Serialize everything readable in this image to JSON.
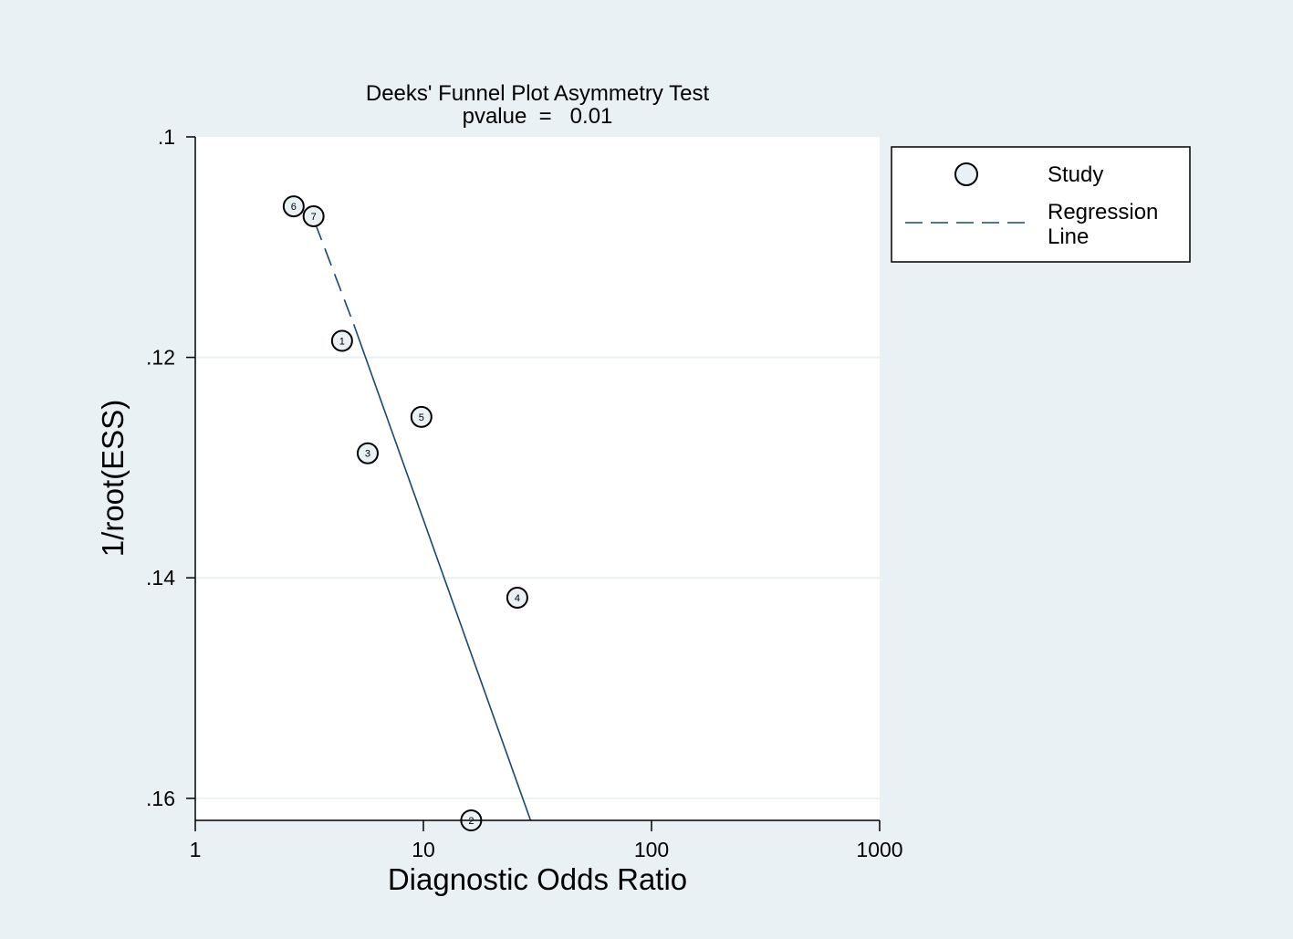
{
  "chart_data": {
    "type": "scatter",
    "title": "Deeks' Funnel Plot Asymmetry Test",
    "subtitle": "pvalue  =   0.01",
    "xlabel": "Diagnostic Odds Ratio",
    "ylabel": "1/root(ESS)",
    "x_scale": "log",
    "x_ticks": [
      1,
      10,
      100,
      1000
    ],
    "x_tick_labels": [
      "1",
      "10",
      "100",
      "1000"
    ],
    "xlim": [
      1,
      1000
    ],
    "y_ticks": [
      0.1,
      0.12,
      0.14,
      0.16
    ],
    "y_tick_labels": [
      ".1",
      ".12",
      ".14",
      ".16"
    ],
    "ylim": [
      0.1,
      0.162
    ],
    "y_reversed": true,
    "grid": "horizontal",
    "legend_position": "right",
    "legend": {
      "study_label": "Study",
      "regression_label_line1": "Regression",
      "regression_label_line2": "Line"
    },
    "points": [
      {
        "label": "1",
        "x": 4.4,
        "y": 0.1185
      },
      {
        "label": "2",
        "x": 16.2,
        "y": 0.162
      },
      {
        "label": "3",
        "x": 5.7,
        "y": 0.1287
      },
      {
        "label": "4",
        "x": 25.8,
        "y": 0.1418
      },
      {
        "label": "5",
        "x": 9.8,
        "y": 0.1254
      },
      {
        "label": "6",
        "x": 2.7,
        "y": 0.1063
      },
      {
        "label": "7",
        "x": 3.3,
        "y": 0.1072
      }
    ],
    "regression_line": {
      "dashed_segment": [
        {
          "x": 3.35,
          "y": 0.1078
        },
        {
          "x": 4.95,
          "y": 0.117
        }
      ],
      "solid_segment": [
        {
          "x": 4.95,
          "y": 0.117
        },
        {
          "x": 29.5,
          "y": 0.162
        }
      ]
    },
    "colors": {
      "background": "#eaf1f4",
      "plot_area": "#ffffff",
      "gridline": "#eaf1f4",
      "regression_line": "#1a476f",
      "marker_fill": "#eaf1f4"
    }
  }
}
